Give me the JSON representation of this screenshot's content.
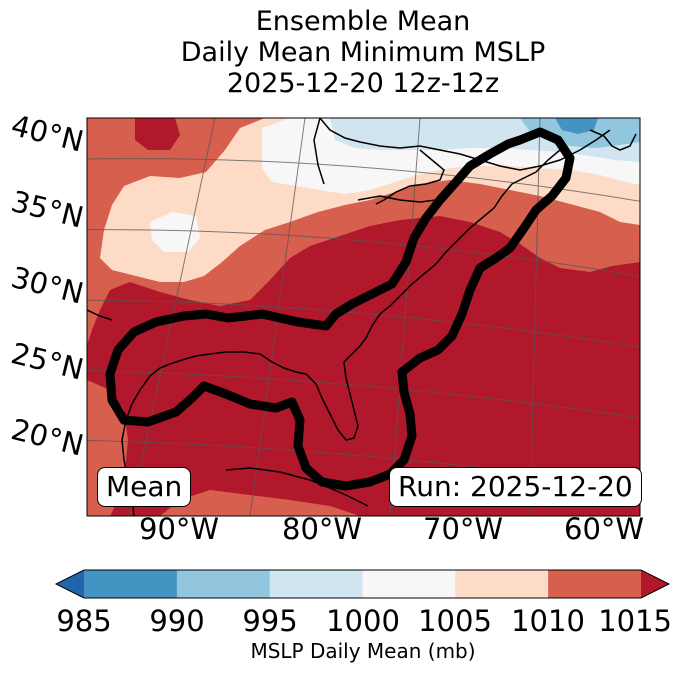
{
  "title": {
    "line1": "Ensemble Mean",
    "line2": "Daily Mean Minimum MSLP",
    "line3": "2025-12-20 12z-12z"
  },
  "map": {
    "lat_labels": [
      "40°N",
      "35°N",
      "30°N",
      "25°N",
      "20°N"
    ],
    "lon_labels": [
      "90°W",
      "80°W",
      "70°W",
      "60°W"
    ],
    "mean_box": "Mean",
    "run_box": "Run: 2025-12-20",
    "colors": {
      "c985": "#2166ac",
      "c990": "#4393c3",
      "c995": "#92c5de",
      "c1000": "#d1e5f0",
      "c1005": "#f7f7f7",
      "c1010": "#fddbc7",
      "c1015": "#d6604d",
      "over": "#b2182b"
    }
  },
  "colorbar": {
    "ticks": [
      "985",
      "990",
      "995",
      "1000",
      "1005",
      "1010",
      "1015"
    ],
    "label": "MSLP Daily Mean (mb)",
    "bins": [
      {
        "range": "985-990",
        "color": "#4393c3"
      },
      {
        "range": "990-995",
        "color": "#92c5de"
      },
      {
        "range": "995-1000",
        "color": "#d1e5f0"
      },
      {
        "range": "1000-1005",
        "color": "#f7f7f7"
      },
      {
        "range": "1005-1010",
        "color": "#fddbc7"
      },
      {
        "range": "1010-1015",
        "color": "#d6604d"
      }
    ],
    "under_color": "#2166ac",
    "over_color": "#b2182b"
  }
}
